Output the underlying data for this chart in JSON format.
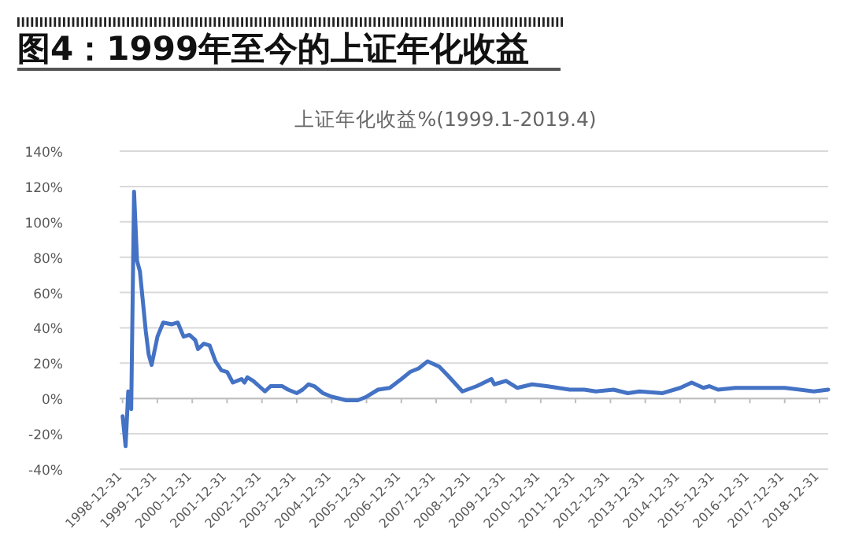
{
  "chart_data": {
    "type": "line",
    "title": "图4：1999年至今的上证年化收益",
    "subtitle": "上证年化收益%(1999.1-2019.4)",
    "x": [
      "1999-01",
      "1999-02",
      "1999-03",
      "1999-04",
      "1999-05",
      "1999-06",
      "1999-07",
      "1999-08",
      "1999-09",
      "1999-10",
      "1999-11",
      "2000-01",
      "2000-03",
      "2000-06",
      "2000-08",
      "2000-10",
      "2000-12",
      "2001-02",
      "2001-03",
      "2001-05",
      "2001-07",
      "2001-09",
      "2001-11",
      "2002-01",
      "2002-03",
      "2002-06",
      "2002-07",
      "2002-08",
      "2002-10",
      "2002-12",
      "2003-02",
      "2003-04",
      "2003-08",
      "2003-10",
      "2004-01",
      "2004-03",
      "2004-05",
      "2004-07",
      "2004-10",
      "2005-01",
      "2005-06",
      "2005-10",
      "2006-01",
      "2006-05",
      "2006-09",
      "2007-01",
      "2007-04",
      "2007-07",
      "2007-10",
      "2008-02",
      "2008-05",
      "2008-10",
      "2009-03",
      "2009-08",
      "2009-09",
      "2010-01",
      "2010-05",
      "2010-10",
      "2011-03",
      "2011-11",
      "2012-04",
      "2012-08",
      "2013-02",
      "2013-07",
      "2013-11",
      "2014-07",
      "2015-01",
      "2015-05",
      "2015-09",
      "2015-11",
      "2016-02",
      "2016-08",
      "2018-01",
      "2018-11",
      "2019-04"
    ],
    "series": [
      {
        "color": "#4472c4",
        "values": [
          -10,
          -27,
          4,
          -6,
          117,
          78,
          72,
          55,
          38,
          25,
          19,
          35,
          43,
          42,
          43,
          35,
          36,
          33,
          28,
          31,
          30,
          21,
          16,
          15,
          9,
          11,
          9,
          12,
          10,
          7,
          4,
          7,
          7,
          5,
          3,
          5,
          8,
          7,
          3,
          1,
          -1,
          -1,
          1,
          5,
          6,
          11,
          15,
          17,
          21,
          18,
          13,
          4,
          7,
          11,
          8,
          10,
          6,
          8,
          7,
          5,
          5,
          4,
          5,
          3,
          4,
          3,
          6,
          9,
          6,
          7,
          5,
          6,
          6,
          4,
          5
        ]
      }
    ],
    "xlim": [
      "1998-12",
      "2019-04"
    ],
    "xticks": [
      {
        "value": "1998-12-31",
        "label": "1998-12-31"
      },
      {
        "value": "1999-12-31",
        "label": "1999-12-31"
      },
      {
        "value": "2000-12-31",
        "label": "2000-12-31"
      },
      {
        "value": "2001-12-31",
        "label": "2001-12-31"
      },
      {
        "value": "2002-12-31",
        "label": "2002-12-31"
      },
      {
        "value": "2003-12-31",
        "label": "2003-12-31"
      },
      {
        "value": "2004-12-31",
        "label": "2004-12-31"
      },
      {
        "value": "2005-12-31",
        "label": "2005-12-31"
      },
      {
        "value": "2006-12-31",
        "label": "2006-12-31"
      },
      {
        "value": "2007-12-31",
        "label": "2007-12-31"
      },
      {
        "value": "2008-12-31",
        "label": "2008-12-31"
      },
      {
        "value": "2009-12-31",
        "label": "2009-12-31"
      },
      {
        "value": "2010-12-31",
        "label": "2010-12-31"
      },
      {
        "value": "2011-12-31",
        "label": "2011-12-31"
      },
      {
        "value": "2012-12-31",
        "label": "2012-12-31"
      },
      {
        "value": "2013-12-31",
        "label": "2013-12-31"
      },
      {
        "value": "2014-12-31",
        "label": "2014-12-31"
      },
      {
        "value": "2015-12-31",
        "label": "2015-12-31"
      },
      {
        "value": "2016-12-31",
        "label": "2016-12-31"
      },
      {
        "value": "2017-12-31",
        "label": "2017-12-31"
      },
      {
        "value": "2018-12-31",
        "label": "2018-12-31"
      }
    ],
    "ylim": [
      -40,
      140
    ],
    "yticks": [
      {
        "value": -40,
        "label": "-40%"
      },
      {
        "value": -20,
        "label": "-20%"
      },
      {
        "value": 0,
        "label": "0%"
      },
      {
        "value": 20,
        "label": "20%"
      },
      {
        "value": 40,
        "label": "40%"
      },
      {
        "value": 60,
        "label": "60%"
      },
      {
        "value": 80,
        "label": "80%"
      },
      {
        "value": 100,
        "label": "100%"
      },
      {
        "value": 120,
        "label": "120%"
      },
      {
        "value": 140,
        "label": "140%"
      }
    ],
    "grid": "y",
    "marker": "none",
    "line_style": "solid"
  }
}
